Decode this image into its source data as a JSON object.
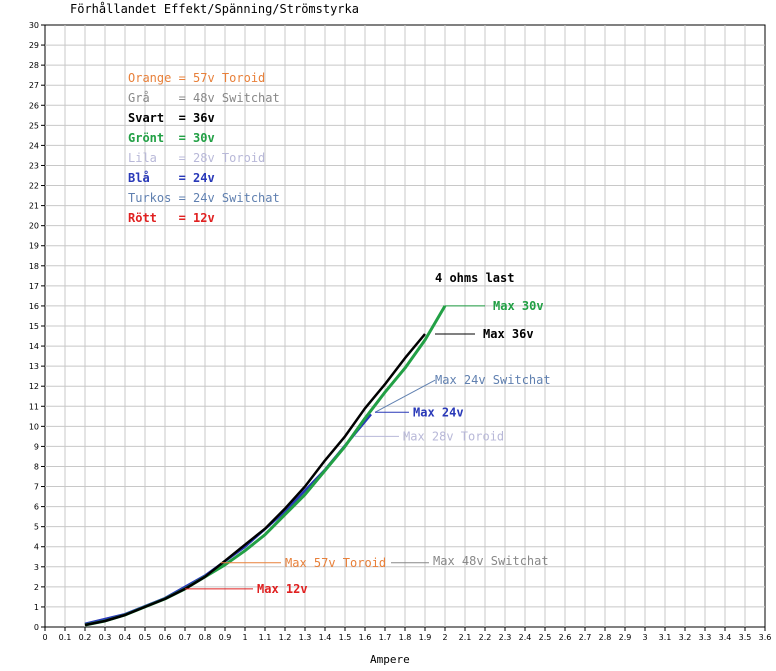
{
  "chart_data": {
    "type": "line",
    "title": "Förhållandet Effekt/Spänning/Strömstyrka",
    "xlabel": "Ampere",
    "ylabel": "",
    "xlim": [
      0,
      3.6
    ],
    "ylim": [
      0,
      30
    ],
    "x_ticks": [
      "0",
      "0.1",
      "0.2",
      "0.3",
      "0.4",
      "0.5",
      "0.6",
      "0.7",
      "0.8",
      "0.9",
      "1",
      "1.1",
      "1.2",
      "1.3",
      "1.4",
      "1.5",
      "1.6",
      "1.7",
      "1.8",
      "1.9",
      "2",
      "2.1",
      "2.2",
      "2.3",
      "2.4",
      "2.5",
      "2.6",
      "2.7",
      "2.8",
      "2.9",
      "3",
      "3.1",
      "3.2",
      "3.3",
      "3.4",
      "3.5",
      "3.6"
    ],
    "y_ticks": [
      "0",
      "1",
      "2",
      "3",
      "4",
      "5",
      "6",
      "7",
      "8",
      "9",
      "10",
      "11",
      "12",
      "13",
      "14",
      "15",
      "16",
      "17",
      "18",
      "19",
      "20",
      "21",
      "22",
      "23",
      "24",
      "25",
      "26",
      "27",
      "28",
      "29",
      "30"
    ],
    "grid": true,
    "legend": [
      {
        "text": "Orange = 57v Toroid",
        "color": "#e8803a",
        "bold": false
      },
      {
        "text": "Grå    = 48v Switchat",
        "color": "#888888",
        "bold": false
      },
      {
        "text": "Svart  = 36v",
        "color": "#000000",
        "bold": true
      },
      {
        "text": "Grönt  = 30v",
        "color": "#22a045",
        "bold": true
      },
      {
        "text": "Lila   = 28v Toroid",
        "color": "#b8b8d8",
        "bold": false
      },
      {
        "text": "Blå    = 24v",
        "color": "#2838b8",
        "bold": true
      },
      {
        "text": "Turkos = 24v Switchat",
        "color": "#6080b0",
        "bold": false
      },
      {
        "text": "Rött   = 12v",
        "color": "#e02020",
        "bold": true
      }
    ],
    "annotations": [
      {
        "text": "4 ohms last",
        "color": "#000000",
        "bold": true,
        "x": 1.95,
        "y": 17.4
      },
      {
        "text": "Max 30v",
        "color": "#22a045",
        "bold": true,
        "x": 2.24,
        "y": 16.0,
        "lx": [
          2.0,
          2.2
        ],
        "ly": [
          16.0,
          16.0
        ]
      },
      {
        "text": "Max 36v",
        "color": "#000000",
        "bold": true,
        "x": 2.19,
        "y": 14.6,
        "lx": [
          1.95,
          2.15
        ],
        "ly": [
          14.6,
          14.6
        ]
      },
      {
        "text": "Max 24v Switchat",
        "color": "#6080b0",
        "bold": false,
        "x": 1.95,
        "y": 12.3,
        "lx": [
          1.65,
          1.95
        ],
        "ly": [
          10.7,
          12.3
        ]
      },
      {
        "text": "Max 24v",
        "color": "#2838b8",
        "bold": true,
        "x": 1.84,
        "y": 10.7,
        "lx": [
          1.65,
          1.82
        ],
        "ly": [
          10.7,
          10.7
        ]
      },
      {
        "text": "Max 28v Toroid",
        "color": "#b8b8d8",
        "bold": false,
        "x": 1.79,
        "y": 9.5,
        "lx": [
          1.55,
          1.77
        ],
        "ly": [
          9.5,
          9.5
        ]
      },
      {
        "text": "Max 57v Toroid",
        "color": "#e8803a",
        "bold": false,
        "x": 1.2,
        "y": 3.2,
        "lx": [
          0.88,
          1.18
        ],
        "ly": [
          3.2,
          3.2
        ]
      },
      {
        "text": "Max 48v Switchat",
        "color": "#888888",
        "bold": false,
        "x": 1.94,
        "y": 3.3,
        "lx": [
          1.73,
          1.92
        ],
        "ly": [
          3.2,
          3.2
        ]
      },
      {
        "text": "Max 12v",
        "color": "#e02020",
        "bold": true,
        "x": 1.06,
        "y": 1.9,
        "lx": [
          0.7,
          1.04
        ],
        "ly": [
          1.9,
          1.9
        ]
      }
    ],
    "series": [
      {
        "name": "Orange = 57v Toroid",
        "color": "#e8803a",
        "width": 1.5,
        "x": [
          0.2,
          0.3,
          0.4,
          0.5,
          0.6,
          0.7,
          0.8,
          0.88
        ],
        "y": [
          0.16,
          0.36,
          0.64,
          1.0,
          1.44,
          1.96,
          2.56,
          3.1
        ]
      },
      {
        "name": "Grå = 48v Switchat",
        "color": "#888888",
        "width": 1.5,
        "x": [
          0.2,
          0.3,
          0.4,
          0.5,
          0.6,
          0.7,
          0.8,
          0.9
        ],
        "y": [
          0.16,
          0.36,
          0.64,
          1.0,
          1.44,
          1.96,
          2.56,
          3.24
        ]
      },
      {
        "name": "Rött = 12v",
        "color": "#e02020",
        "width": 1.5,
        "x": [
          0.2,
          0.3,
          0.4,
          0.5,
          0.6,
          0.7
        ],
        "y": [
          0.16,
          0.36,
          0.64,
          1.0,
          1.44,
          1.96
        ]
      },
      {
        "name": "Lila = 28v Toroid",
        "color": "#b8b8d8",
        "width": 2,
        "x": [
          0.2,
          0.4,
          0.6,
          0.8,
          1.0,
          1.2,
          1.4,
          1.55
        ],
        "y": [
          0.16,
          0.64,
          1.44,
          2.56,
          4.0,
          5.76,
          7.84,
          9.6
        ]
      },
      {
        "name": "Turkos = 24v Switchat",
        "color": "#6080b0",
        "width": 2,
        "x": [
          0.2,
          0.4,
          0.6,
          0.8,
          1.0,
          1.2,
          1.4,
          1.62
        ],
        "y": [
          0.16,
          0.64,
          1.44,
          2.56,
          4.0,
          5.76,
          7.84,
          10.5
        ]
      },
      {
        "name": "Blå = 24v",
        "color": "#2838b8",
        "width": 2.5,
        "x": [
          0.2,
          0.4,
          0.6,
          0.8,
          1.0,
          1.2,
          1.4,
          1.63
        ],
        "y": [
          0.16,
          0.64,
          1.44,
          2.56,
          4.0,
          5.76,
          7.84,
          10.6
        ]
      },
      {
        "name": "Grönt = 30v",
        "color": "#22a045",
        "width": 3,
        "x": [
          0.2,
          0.3,
          0.4,
          0.5,
          0.6,
          0.7,
          0.8,
          0.9,
          1.0,
          1.1,
          1.2,
          1.3,
          1.4,
          1.5,
          1.6,
          1.7,
          1.8,
          1.9,
          2.0
        ],
        "y": [
          0.1,
          0.3,
          0.6,
          1.0,
          1.4,
          1.9,
          2.5,
          3.1,
          3.8,
          4.6,
          5.6,
          6.6,
          7.8,
          9.0,
          10.4,
          11.7,
          12.9,
          14.3,
          16.0
        ]
      },
      {
        "name": "Svart = 36v",
        "color": "#000000",
        "width": 2.5,
        "x": [
          0.2,
          0.3,
          0.4,
          0.5,
          0.6,
          0.7,
          0.8,
          0.9,
          1.0,
          1.1,
          1.2,
          1.3,
          1.4,
          1.5,
          1.6,
          1.7,
          1.8,
          1.9
        ],
        "y": [
          0.1,
          0.3,
          0.6,
          1.0,
          1.4,
          1.9,
          2.5,
          3.3,
          4.1,
          4.9,
          5.9,
          7.0,
          8.3,
          9.5,
          10.9,
          12.1,
          13.4,
          14.6
        ]
      }
    ]
  }
}
